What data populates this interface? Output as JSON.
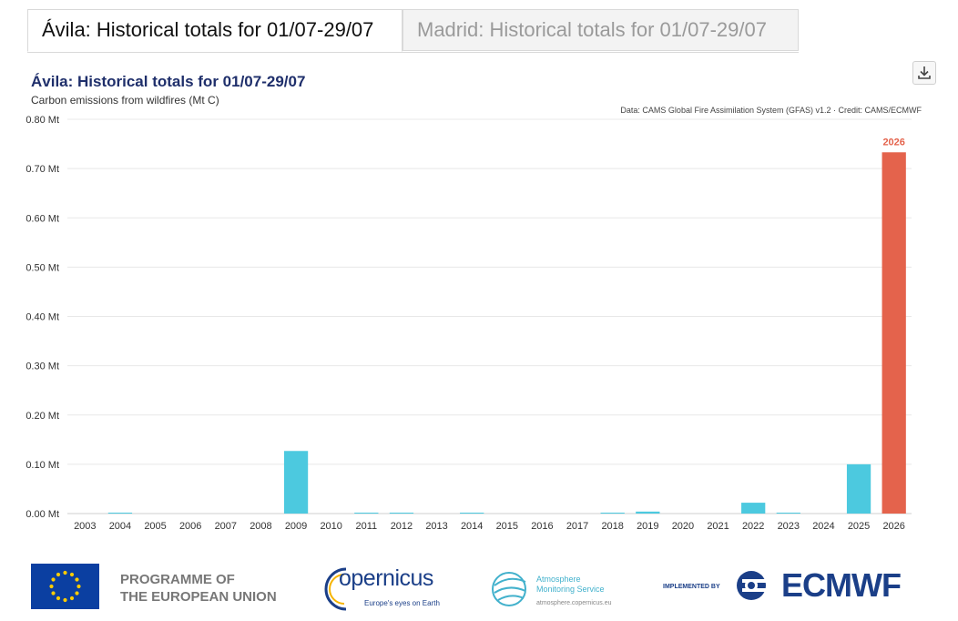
{
  "tabs": [
    {
      "label": "Ávila: Historical totals for 01/07-29/07",
      "active": true
    },
    {
      "label": "Madrid: Historical totals for 01/07-29/07",
      "active": false
    }
  ],
  "download_icon": "download-icon",
  "chart_data": {
    "type": "bar",
    "title": "Ávila: Historical totals for 01/07-29/07",
    "subtitle": "Carbon emissions from wildfires (Mt C)",
    "credit": "Data: CAMS Global Fire Assimilation System (GFAS) v1.2 · Credit: CAMS/ECMWF",
    "categories": [
      "2003",
      "2004",
      "2005",
      "2006",
      "2007",
      "2008",
      "2009",
      "2010",
      "2011",
      "2012",
      "2013",
      "2014",
      "2015",
      "2016",
      "2017",
      "2018",
      "2019",
      "2020",
      "2021",
      "2022",
      "2023",
      "2024",
      "2025",
      "2026"
    ],
    "values": [
      0.0,
      0.001,
      0.0,
      0.0,
      0.0,
      0.0,
      0.127,
      0.0,
      0.0005,
      0.0005,
      0.0,
      0.001,
      0.0,
      0.0,
      0.0,
      0.0005,
      0.004,
      0.0,
      0.0,
      0.022,
      0.0005,
      0.0,
      0.1,
      0.733
    ],
    "highlight_category": "2026",
    "highlight_label": "2026",
    "ylim": [
      0,
      0.8
    ],
    "yticks": [
      {
        "value": 0.0,
        "label": "0.00 Mt"
      },
      {
        "value": 0.1,
        "label": "0.10 Mt"
      },
      {
        "value": 0.2,
        "label": "0.20 Mt"
      },
      {
        "value": 0.3,
        "label": "0.30 Mt"
      },
      {
        "value": 0.4,
        "label": "0.40 Mt"
      },
      {
        "value": 0.5,
        "label": "0.50 Mt"
      },
      {
        "value": 0.6,
        "label": "0.60 Mt"
      },
      {
        "value": 0.7,
        "label": "0.70 Mt"
      },
      {
        "value": 0.8,
        "label": "0.80 Mt"
      }
    ],
    "grid": true,
    "colors": {
      "bar": "#4cc9df",
      "highlight": "#e4634c",
      "grid": "#e8e8e8"
    }
  },
  "footer": {
    "eu_line1": "PROGRAMME OF",
    "eu_line2": "THE EUROPEAN UNION",
    "copernicus_word": "opernicus",
    "copernicus_tagline": "Europe's eyes on Earth",
    "atmosphere_line1": "Atmosphere",
    "atmosphere_line2": "Monitoring Service",
    "atmosphere_url": "atmosphere.copernicus.eu",
    "implemented_by": "IMPLEMENTED BY",
    "ecmwf": "ECMWF"
  }
}
